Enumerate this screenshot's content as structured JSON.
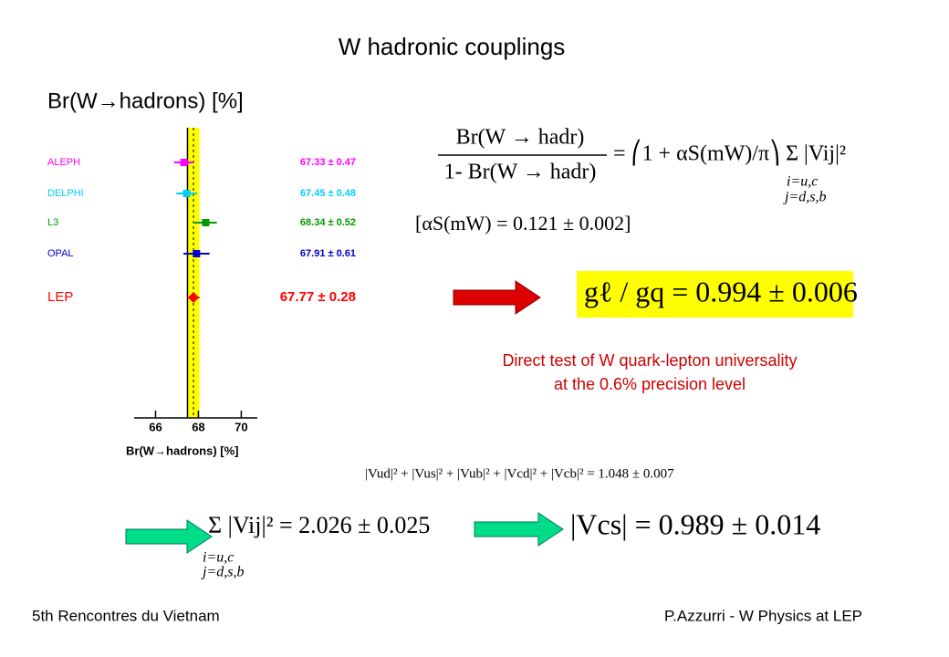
{
  "title": "W hadronic couplings",
  "chart_data": {
    "type": "errorbar",
    "title": "Br(W→hadrons) [%]",
    "xlabel": "Br(W→hadrons) [%]",
    "categories": [
      "ALEPH",
      "DELPHI",
      "L3",
      "OPAL",
      "LEP"
    ],
    "values": [
      67.33,
      67.45,
      68.34,
      67.91,
      67.77
    ],
    "errors": [
      0.47,
      0.48,
      0.52,
      0.61,
      0.28
    ],
    "value_labels": [
      "67.33 ± 0.47",
      "67.45 ± 0.48",
      "68.34 ± 0.52",
      "67.91 ± 0.61",
      "67.77 ± 0.28"
    ],
    "colors": [
      "#ff00ff",
      "#00ccff",
      "#009900",
      "#0000cc",
      "#ff0000"
    ],
    "xlim": [
      65,
      70.75
    ],
    "xticks": [
      66,
      68,
      70
    ]
  },
  "formulas": {
    "ratio_num": "Br(W → hadr)",
    "ratio_den": "1- Br(W → hadr)",
    "ratio_rhs": "= ⎛1 + αS(mW)/π⎞ Σ |Vij|²",
    "sum_sub_i": "i=u,c",
    "sum_sub_j": "j=d,s,b",
    "alpha_s": "[αS(mW) = 0.121 ± 0.002]",
    "g_ratio": "gℓ / gq = 0.994 ± 0.006",
    "ckm_unitarity": "|Vud|² + |Vus|² + |Vub|² + |Vcd|² + |Vcb|² = 1.048 ± 0.007",
    "sum_result": "Σ |Vij|² = 2.026 ± 0.025",
    "sum2_sub_i": "i=u,c",
    "sum2_sub_j": "j=d,s,b",
    "vcs": "|Vcs| = 0.989 ± 0.014"
  },
  "note": [
    "Direct test of W quark-lepton universality",
    "at the 0.6% precision level"
  ],
  "footer": {
    "left": "5th Rencontres du Vietnam",
    "right": "P.Azzurri - W Physics at LEP"
  }
}
